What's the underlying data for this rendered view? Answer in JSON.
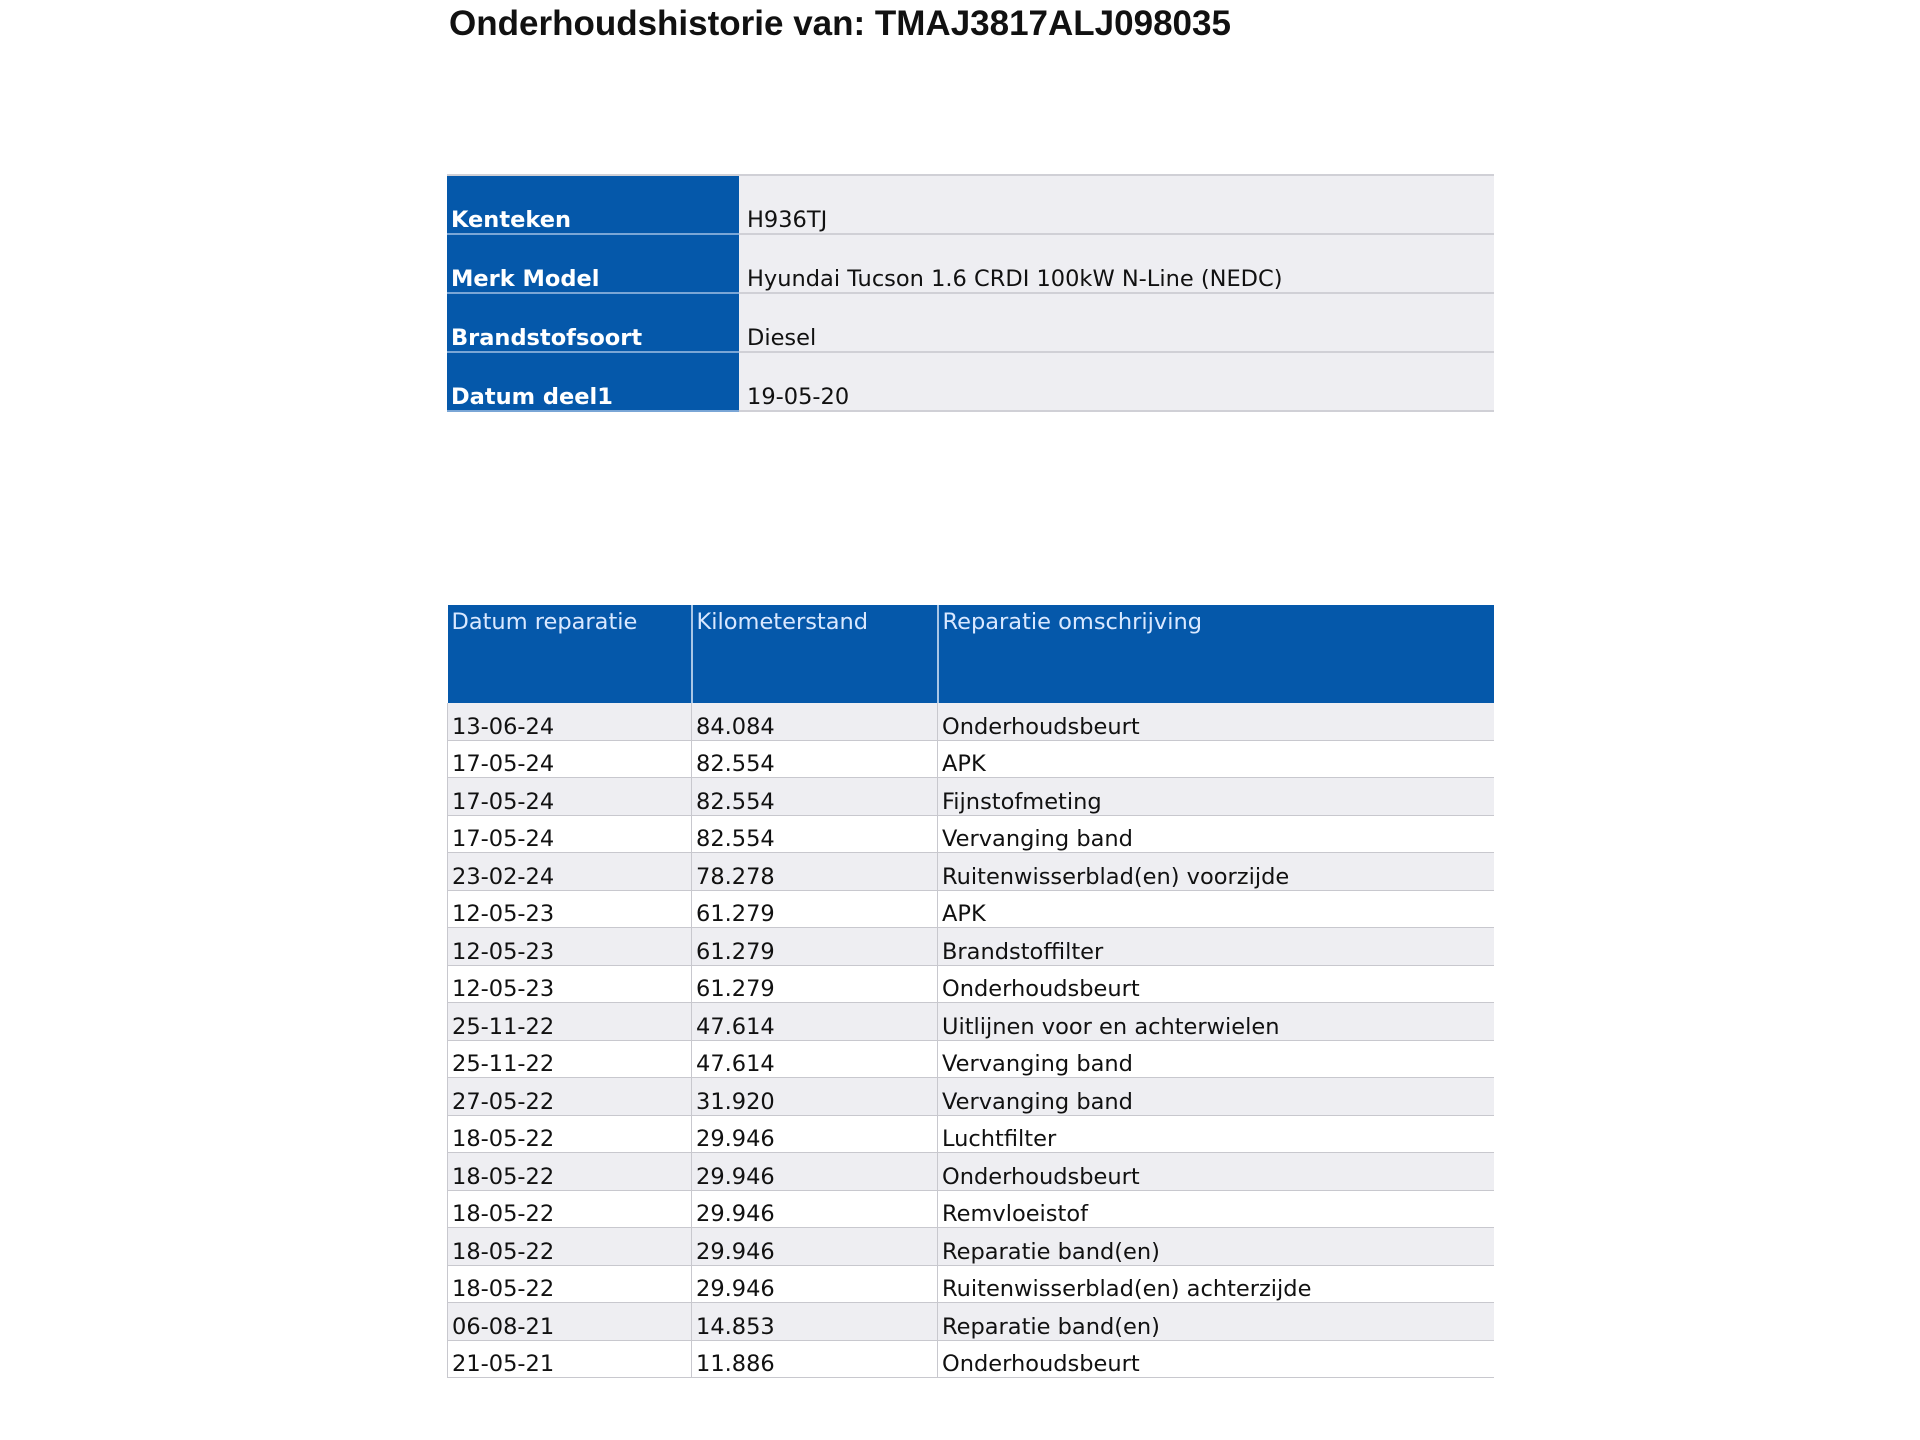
{
  "title": "Onderhoudshistorie van: TMAJ3817ALJ098035",
  "vehicle_info": [
    {
      "label": "Kenteken",
      "value": "H936TJ"
    },
    {
      "label": "Merk Model",
      "value": "Hyundai Tucson 1.6 CRDI 100kW N-Line (NEDC)"
    },
    {
      "label": "Brandstofsoort",
      "value": "Diesel"
    },
    {
      "label": "Datum deel1",
      "value": "19-05-20"
    }
  ],
  "history": {
    "headers": [
      "Datum reparatie",
      "Kilometerstand",
      "Reparatie omschrijving"
    ],
    "rows": [
      [
        "13-06-24",
        "84.084",
        "Onderhoudsbeurt"
      ],
      [
        "17-05-24",
        "82.554",
        "APK"
      ],
      [
        "17-05-24",
        "82.554",
        "Fijnstofmeting"
      ],
      [
        "17-05-24",
        "82.554",
        "Vervanging band"
      ],
      [
        "23-02-24",
        "78.278",
        "Ruitenwisserblad(en) voorzijde"
      ],
      [
        "12-05-23",
        "61.279",
        "APK"
      ],
      [
        "12-05-23",
        "61.279",
        "Brandstoffilter"
      ],
      [
        "12-05-23",
        "61.279",
        "Onderhoudsbeurt"
      ],
      [
        "25-11-22",
        "47.614",
        "Uitlijnen voor en achterwielen"
      ],
      [
        "25-11-22",
        "47.614",
        "Vervanging band"
      ],
      [
        "27-05-22",
        "31.920",
        "Vervanging band"
      ],
      [
        "18-05-22",
        "29.946",
        "Luchtfilter"
      ],
      [
        "18-05-22",
        "29.946",
        "Onderhoudsbeurt"
      ],
      [
        "18-05-22",
        "29.946",
        "Remvloeistof"
      ],
      [
        "18-05-22",
        "29.946",
        "Reparatie band(en)"
      ],
      [
        "18-05-22",
        "29.946",
        "Ruitenwisserblad(en) achterzijde"
      ],
      [
        "06-08-21",
        "14.853",
        "Reparatie band(en)"
      ],
      [
        "21-05-21",
        "11.886",
        "Onderhoudsbeurt"
      ]
    ]
  },
  "colors": {
    "header_blue": "#0558aa",
    "row_alt": "#eeeef2"
  }
}
